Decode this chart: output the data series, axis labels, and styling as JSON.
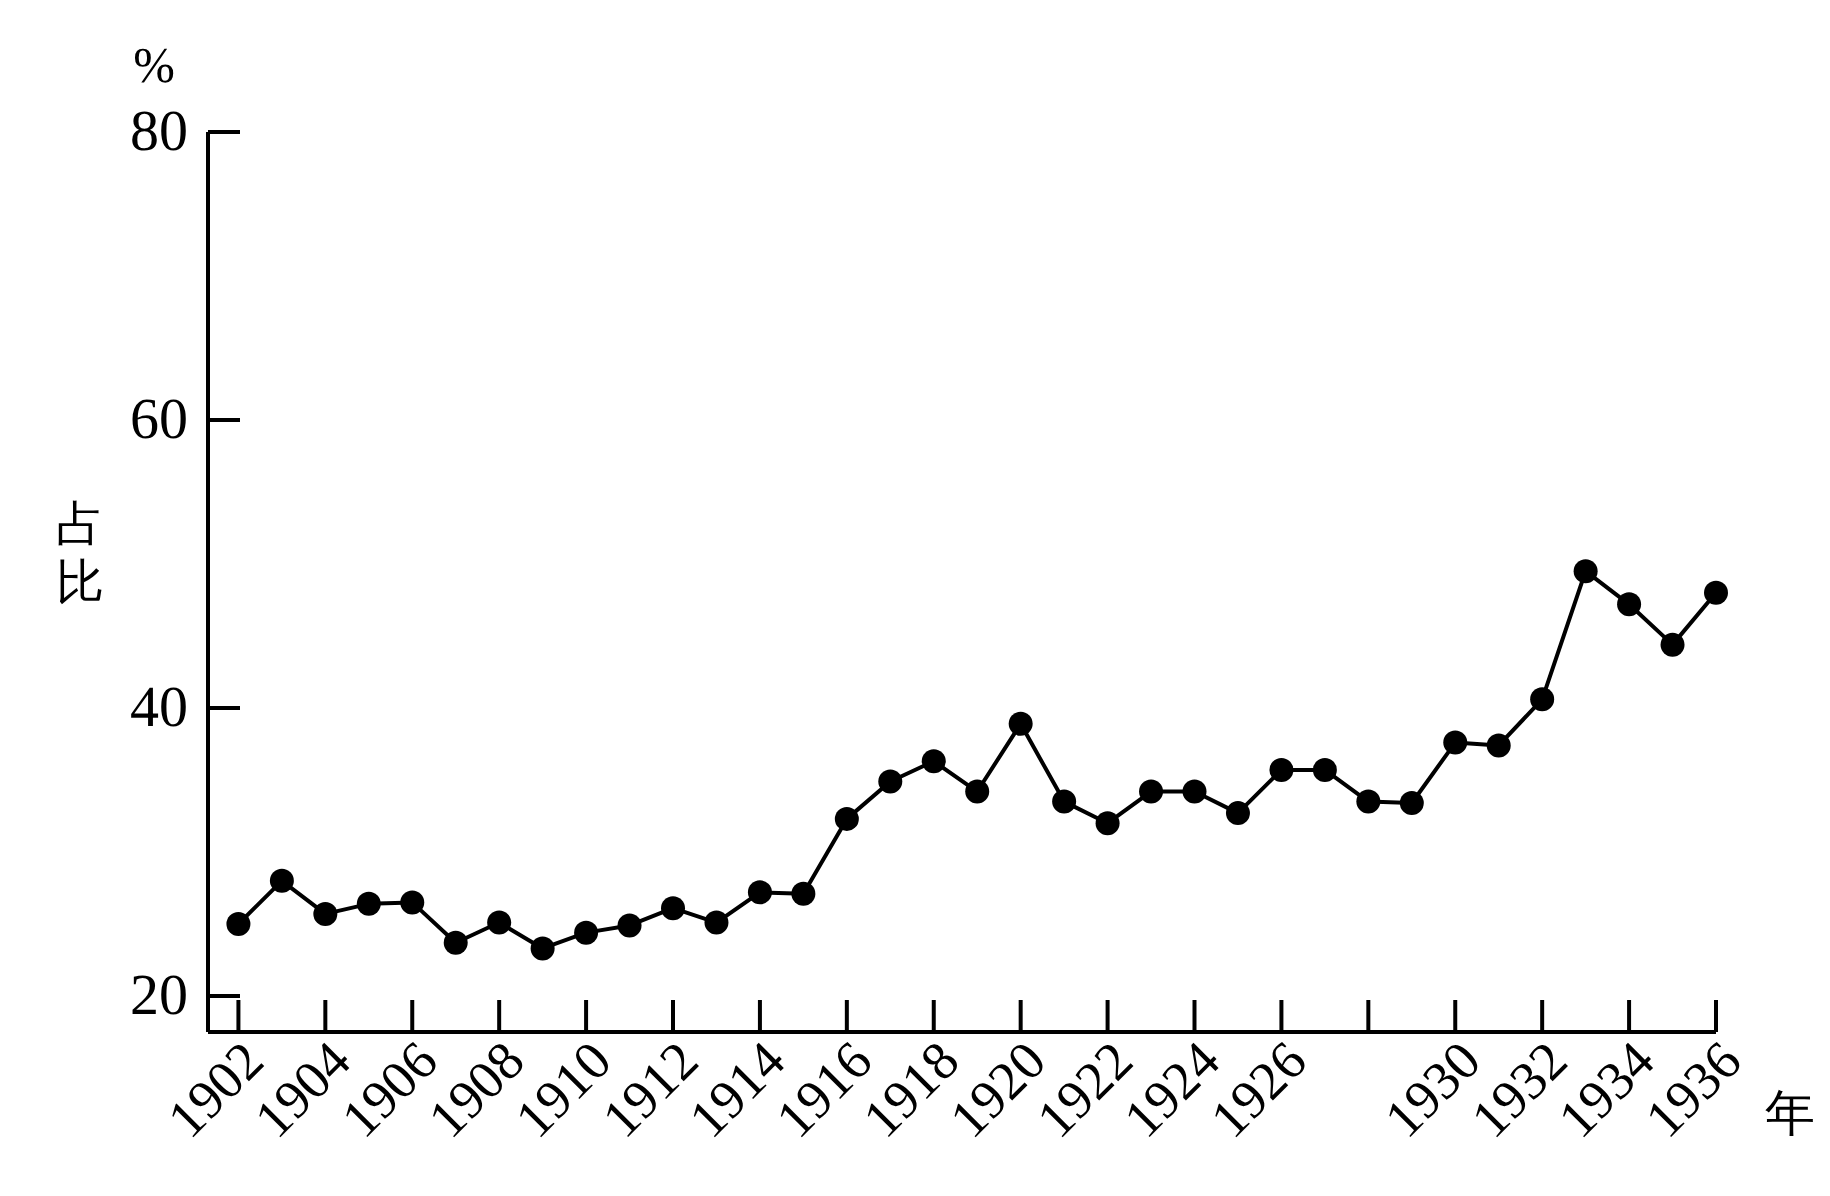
{
  "chart_data": {
    "type": "line",
    "xlabel": "年",
    "ylabel": "占比",
    "annotations": [
      "%"
    ],
    "x": [
      1902,
      1903,
      1904,
      1905,
      1906,
      1907,
      1908,
      1909,
      1910,
      1911,
      1912,
      1913,
      1914,
      1915,
      1916,
      1917,
      1918,
      1919,
      1920,
      1921,
      1922,
      1923,
      1924,
      1925,
      1926,
      1927,
      1928,
      1929,
      1930,
      1931,
      1932,
      1933,
      1934,
      1935,
      1936
    ],
    "values": [
      25.0,
      28.0,
      25.7,
      26.4,
      26.5,
      23.7,
      25.1,
      23.3,
      24.4,
      24.9,
      26.1,
      25.1,
      27.2,
      27.1,
      32.3,
      34.9,
      36.3,
      34.2,
      38.9,
      33.5,
      32.0,
      34.2,
      34.2,
      32.7,
      35.7,
      35.7,
      33.5,
      33.4,
      37.6,
      37.4,
      40.6,
      49.5,
      47.2,
      44.4,
      48.0
    ],
    "color": "#000000",
    "marker": "circle",
    "xlim": [
      1901.3,
      1936
    ],
    "ylim": [
      17.5,
      80
    ],
    "xticks": [
      1902,
      1904,
      1906,
      1908,
      1910,
      1912,
      1914,
      1916,
      1918,
      1920,
      1922,
      1924,
      1926,
      {
        "value": 1928,
        "label": null
      },
      1930,
      1932,
      1934,
      1936
    ],
    "yticks": [
      20,
      40,
      60,
      80
    ]
  }
}
